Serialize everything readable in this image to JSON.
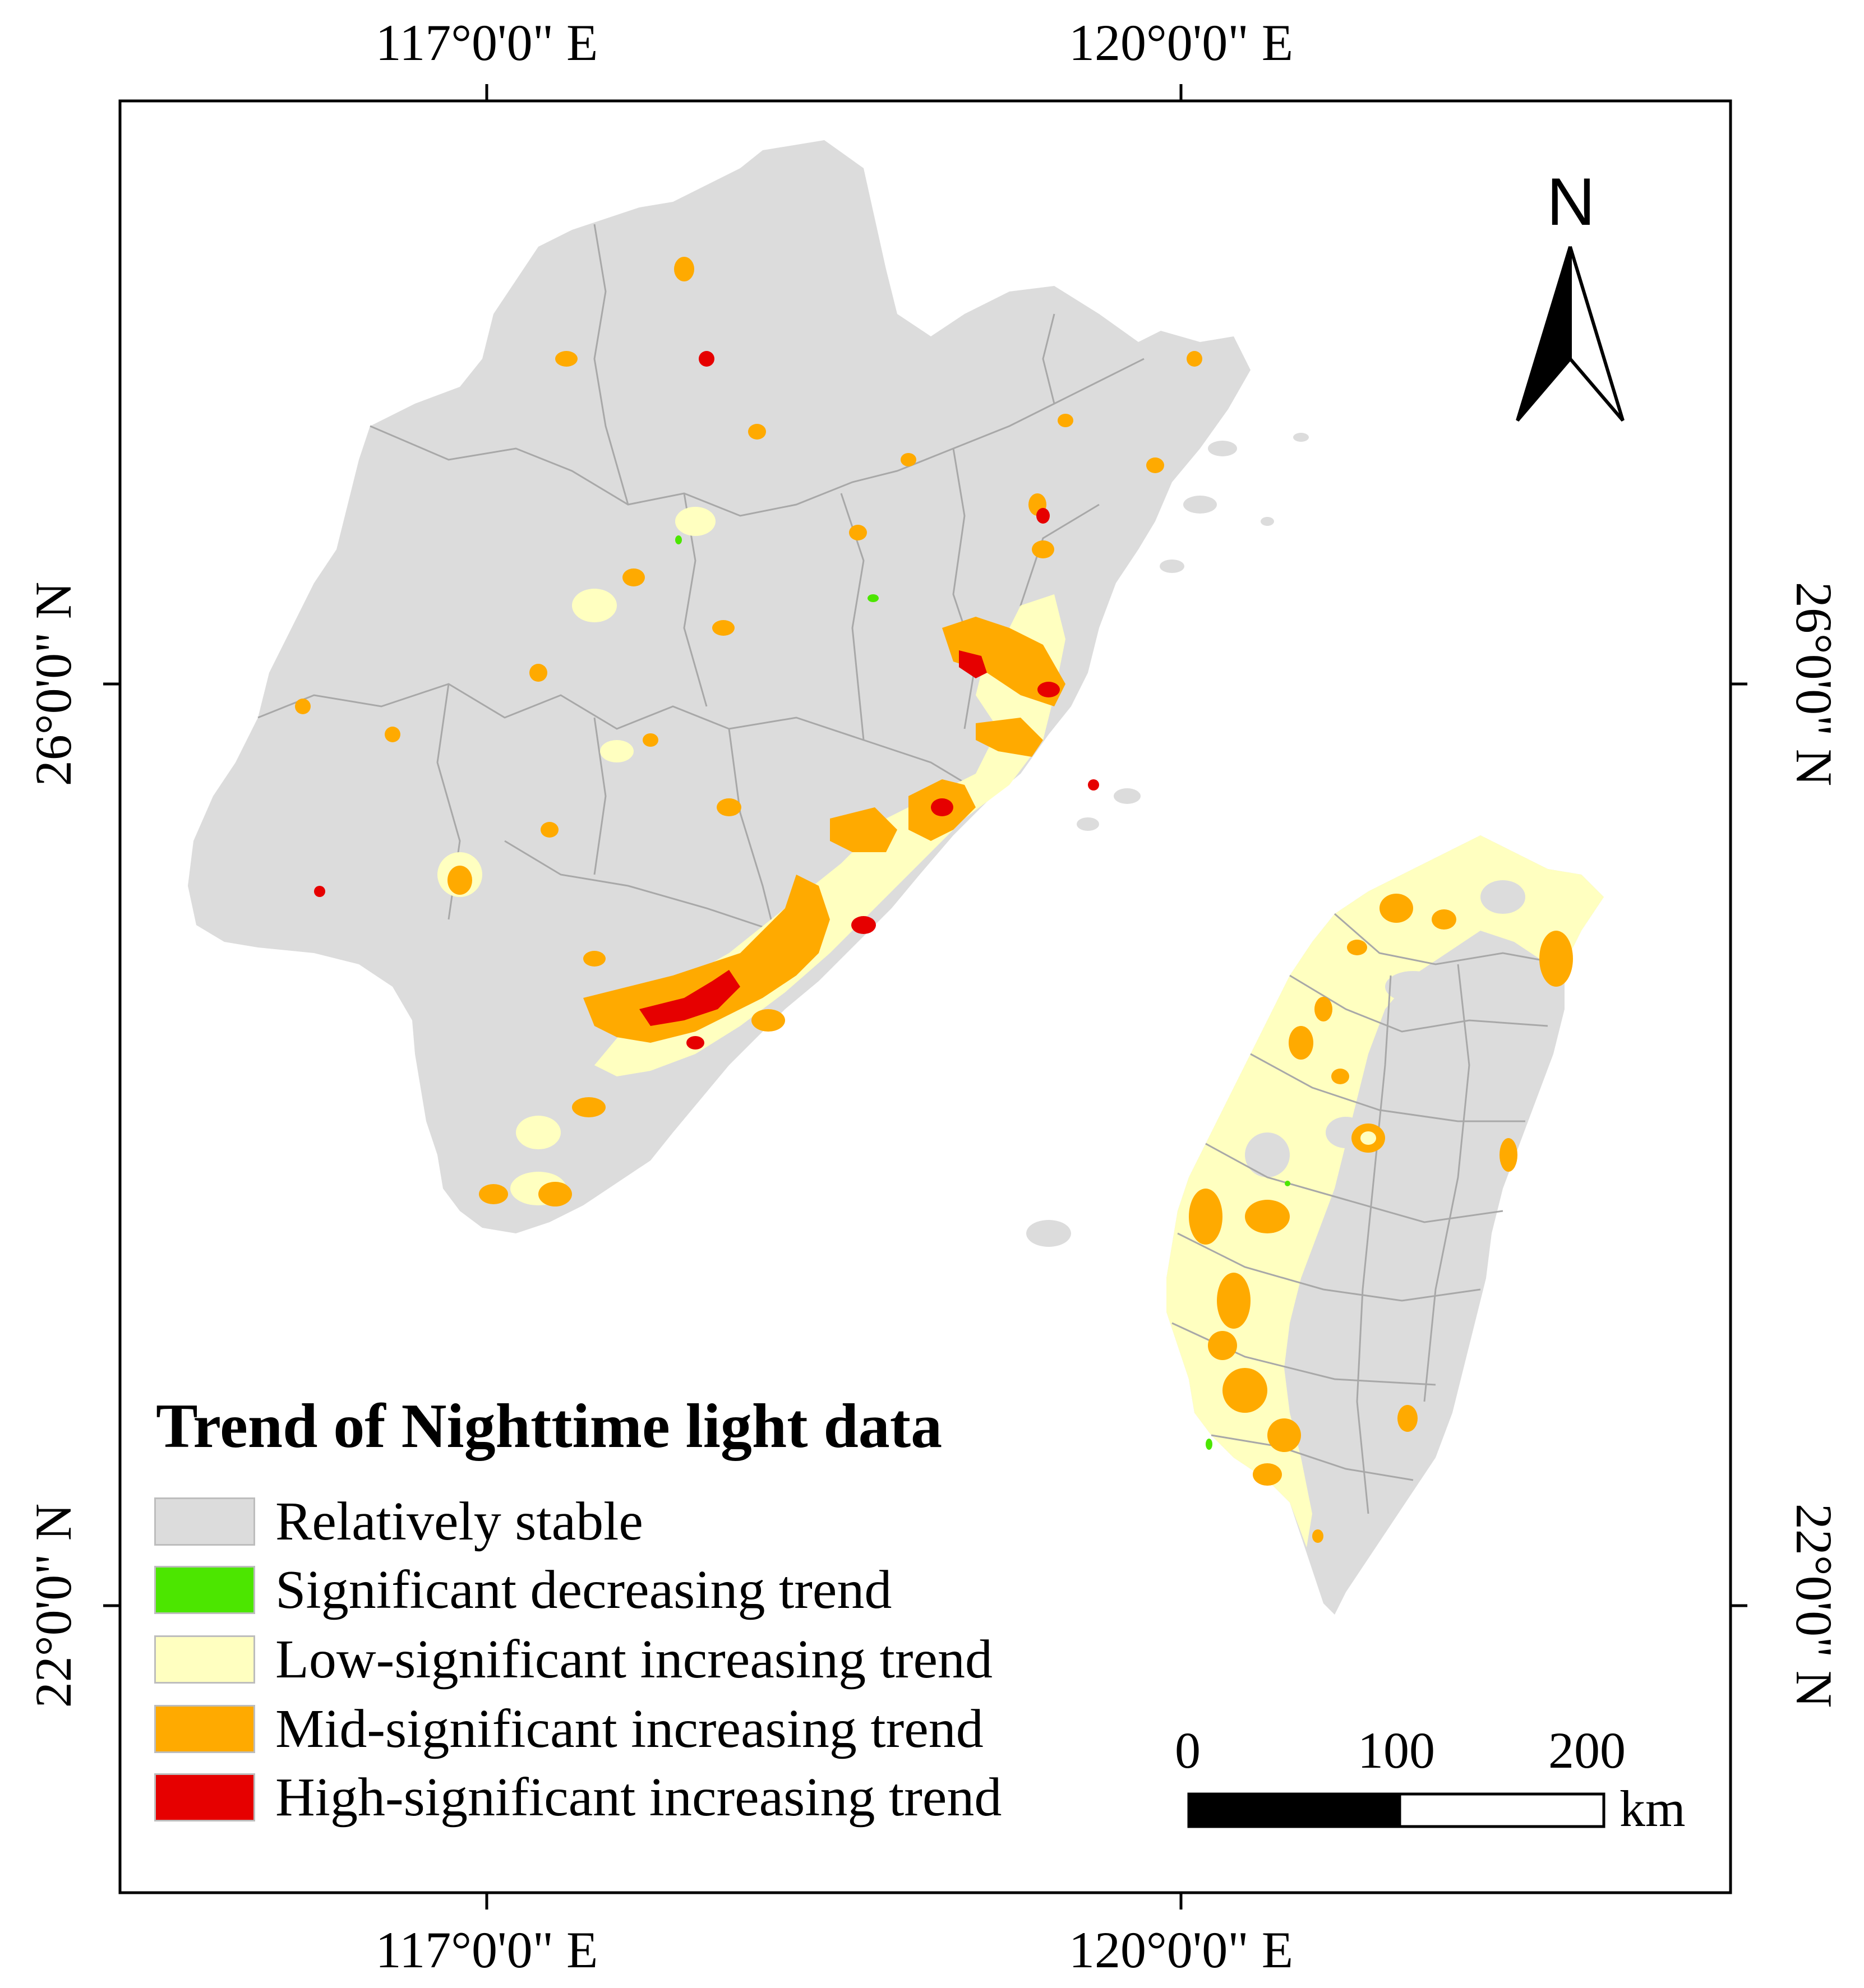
{
  "map": {
    "coordinates": {
      "top": [
        "117°0'0\" E",
        "120°0'0\" E"
      ],
      "bottom": [
        "117°0'0\" E",
        "120°0'0\" E"
      ],
      "left": [
        "26°0'0\" N",
        "22°0'0\" N"
      ],
      "right": [
        "26°0'0\" N",
        "22°0'0\" N"
      ]
    },
    "north_arrow": {
      "label": "N"
    },
    "scale_bar": {
      "ticks": [
        "0",
        "100",
        "200"
      ],
      "unit": "km"
    }
  },
  "legend": {
    "title": "Trend of Nighttime light data",
    "items": [
      {
        "label": "Relatively stable",
        "color": "#dcdcdc"
      },
      {
        "label": "Significant decreasing trend",
        "color": "#4ce600"
      },
      {
        "label": "Low-significant increasing trend",
        "color": "#ffffc0"
      },
      {
        "label": "Mid-significant increasing trend",
        "color": "#ffaa00"
      },
      {
        "label": "High-significant increasing trend",
        "color": "#e60000"
      }
    ]
  }
}
